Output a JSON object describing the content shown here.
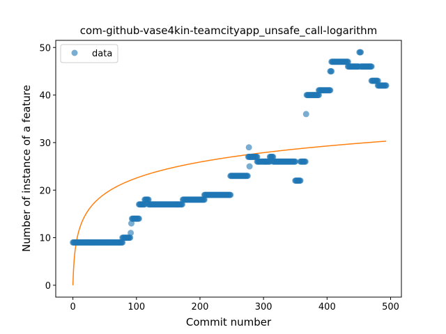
{
  "chart_data": {
    "type": "scatter",
    "title": "com-github-vase4kin-teamcityapp_unsafe_call-logarithm",
    "xlabel": "Commit number",
    "ylabel": "Number of instance of a feature",
    "xlim": [
      -27,
      517
    ],
    "ylim": [
      -2.5,
      51.5
    ],
    "xticks": [
      0,
      100,
      200,
      300,
      400,
      500
    ],
    "yticks": [
      0,
      10,
      20,
      30,
      40,
      50
    ],
    "legend": {
      "position": "upper-left",
      "entries": [
        "data"
      ]
    },
    "colors": {
      "points": "#1f77b4",
      "fit": "#ff7f0e"
    },
    "series": [
      {
        "name": "data",
        "kind": "scatter",
        "segments": [
          {
            "x_start": 0,
            "x_end": 78,
            "y": 9
          },
          {
            "x_start": 78,
            "x_end": 90,
            "y": 10
          },
          {
            "x_start": 91,
            "x_end": 91,
            "y": 11
          },
          {
            "x_start": 92,
            "x_end": 92,
            "y": 13
          },
          {
            "x_start": 93,
            "x_end": 104,
            "y": 14
          },
          {
            "x_start": 104,
            "x_end": 113,
            "y": 17
          },
          {
            "x_start": 113,
            "x_end": 119,
            "y": 18
          },
          {
            "x_start": 119,
            "x_end": 172,
            "y": 17
          },
          {
            "x_start": 173,
            "x_end": 207,
            "y": 18
          },
          {
            "x_start": 207,
            "x_end": 248,
            "y": 19
          },
          {
            "x_start": 248,
            "x_end": 275,
            "y": 23
          },
          {
            "x_start": 277,
            "x_end": 277,
            "y": 29
          },
          {
            "x_start": 278,
            "x_end": 278,
            "y": 25
          },
          {
            "x_start": 276,
            "x_end": 290,
            "y": 27
          },
          {
            "x_start": 290,
            "x_end": 310,
            "y": 26
          },
          {
            "x_start": 310,
            "x_end": 315,
            "y": 27
          },
          {
            "x_start": 315,
            "x_end": 350,
            "y": 26
          },
          {
            "x_start": 350,
            "x_end": 358,
            "y": 22
          },
          {
            "x_start": 358,
            "x_end": 366,
            "y": 26
          },
          {
            "x_start": 367,
            "x_end": 367,
            "y": 36
          },
          {
            "x_start": 368,
            "x_end": 387,
            "y": 40
          },
          {
            "x_start": 387,
            "x_end": 405,
            "y": 41
          },
          {
            "x_start": 405,
            "x_end": 407,
            "y": 45
          },
          {
            "x_start": 407,
            "x_end": 433,
            "y": 47
          },
          {
            "x_start": 433,
            "x_end": 450,
            "y": 46
          },
          {
            "x_start": 451,
            "x_end": 453,
            "y": 49
          },
          {
            "x_start": 453,
            "x_end": 470,
            "y": 46
          },
          {
            "x_start": 470,
            "x_end": 480,
            "y": 43
          },
          {
            "x_start": 480,
            "x_end": 493,
            "y": 42
          }
        ]
      },
      {
        "kind": "line",
        "form": "log",
        "x_range": [
          0,
          493
        ],
        "y_at_x_end": 30.3
      }
    ]
  }
}
